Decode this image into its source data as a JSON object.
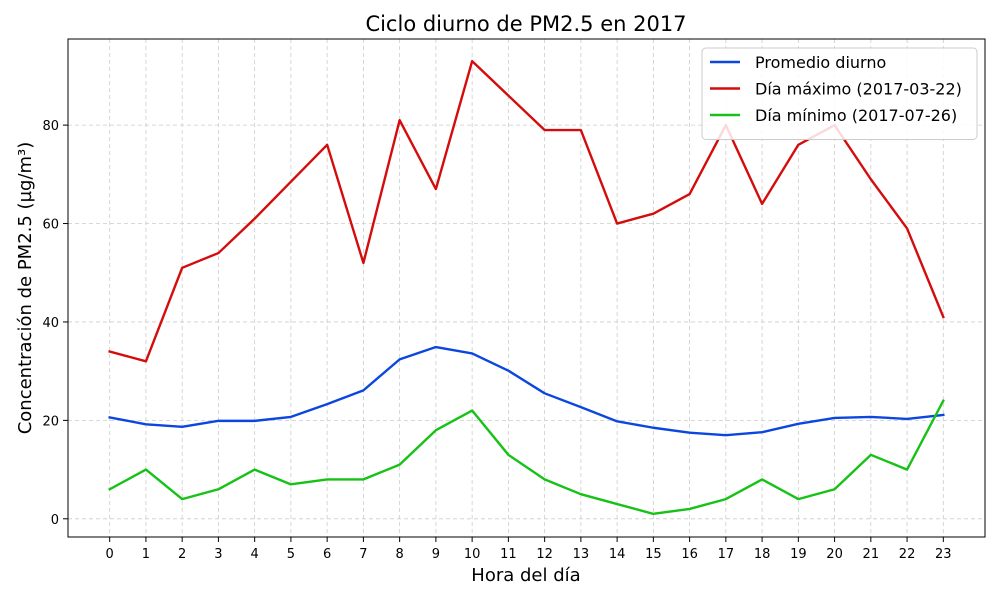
{
  "chart_data": {
    "type": "line",
    "title": "Ciclo diurno de PM2.5 en 2017",
    "xlabel": "Hora del día",
    "ylabel": "Concentración de PM2.5 (µg/m³)",
    "x": [
      0,
      1,
      2,
      3,
      4,
      5,
      6,
      7,
      8,
      9,
      10,
      11,
      12,
      13,
      14,
      15,
      16,
      17,
      18,
      19,
      20,
      21,
      22,
      23
    ],
    "x_ticks": [
      "0",
      "1",
      "2",
      "3",
      "4",
      "5",
      "6",
      "7",
      "8",
      "9",
      "10",
      "11",
      "12",
      "13",
      "14",
      "15",
      "16",
      "17",
      "18",
      "19",
      "20",
      "21",
      "22",
      "23"
    ],
    "y_ticks": [
      "0",
      "20",
      "40",
      "60",
      "80"
    ],
    "y_tick_values": [
      0,
      20,
      40,
      60,
      80
    ],
    "xlim": [
      -1.15,
      24.15
    ],
    "ylim": [
      -3.7,
      97.5
    ],
    "grid": true,
    "legend_position": "top-right",
    "series": [
      {
        "name": "Promedio diurno",
        "color": "#0b47df",
        "values": [
          20.6,
          19.2,
          18.7,
          19.9,
          19.9,
          20.7,
          23.3,
          26.1,
          32.4,
          34.9,
          33.6,
          30.1,
          25.5,
          22.7,
          19.8,
          18.5,
          17.5,
          17.0,
          17.6,
          19.3,
          20.5,
          20.7,
          20.3,
          21.1
        ]
      },
      {
        "name": "Día máximo (2017-03-22)",
        "color": "#d40c0c",
        "values": [
          34,
          32,
          51,
          54,
          61,
          68.5,
          76,
          52,
          81,
          67,
          93,
          86,
          79,
          79,
          60,
          62,
          66,
          80,
          64,
          76,
          80,
          69,
          59,
          41
        ]
      },
      {
        "name": "Día mínimo (2017-07-26)",
        "color": "#16c216",
        "values": [
          6,
          10,
          4,
          6,
          10,
          7,
          8,
          8,
          11,
          18,
          22,
          13,
          8,
          5,
          3,
          1,
          2,
          4,
          8,
          4,
          6,
          13,
          10,
          24
        ]
      }
    ]
  }
}
